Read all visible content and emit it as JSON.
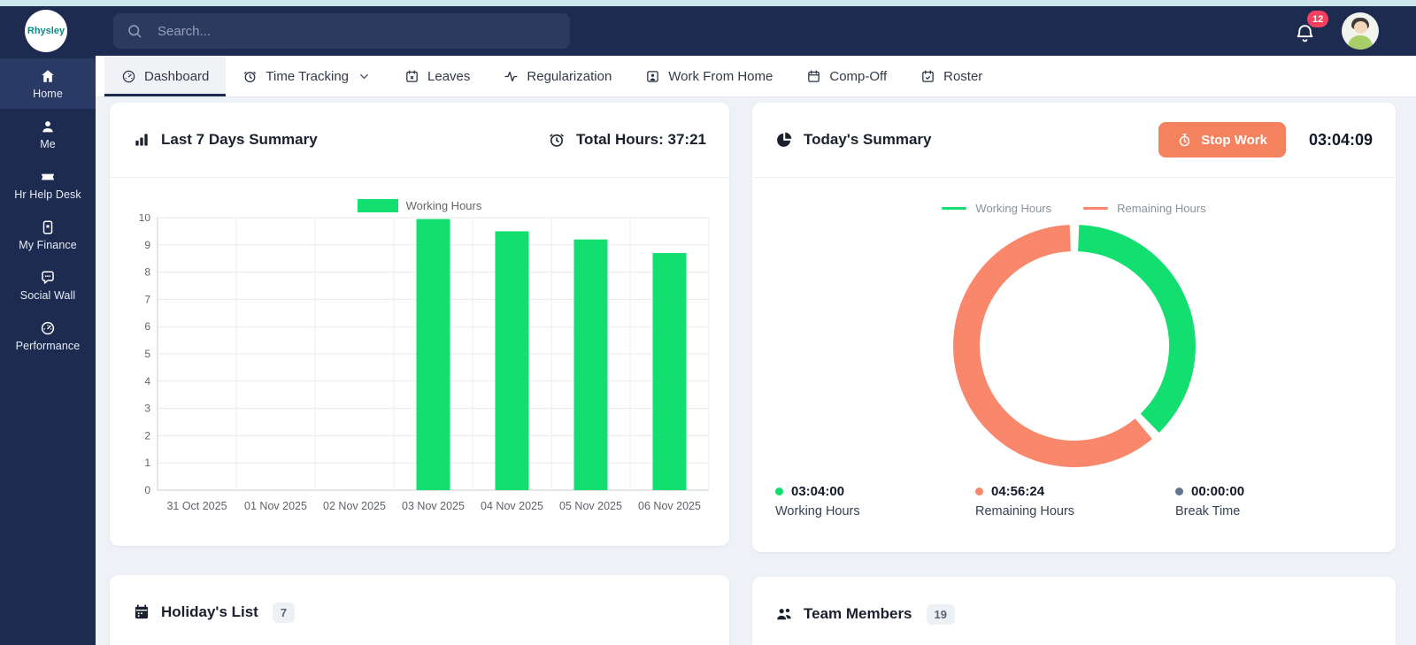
{
  "topbar": {
    "logo_text": "Rhysley",
    "search_placeholder": "Search...",
    "notification_count": "12"
  },
  "sidebar": {
    "items": [
      {
        "label": "Home",
        "icon": "home-icon",
        "active": true
      },
      {
        "label": "Me",
        "icon": "person-icon",
        "active": false
      },
      {
        "label": "Hr Help Desk",
        "icon": "ticket-icon",
        "active": false
      },
      {
        "label": "My Finance",
        "icon": "finance-icon",
        "active": false
      },
      {
        "label": "Social Wall",
        "icon": "chat-bubble-icon",
        "active": false
      },
      {
        "label": "Performance",
        "icon": "gauge-icon",
        "active": false
      }
    ]
  },
  "tabs": {
    "items": [
      {
        "label": "Dashboard",
        "icon": "dashboard-icon",
        "active": true,
        "caret": false
      },
      {
        "label": "Time Tracking",
        "icon": "alarm-clock-icon",
        "active": false,
        "caret": true
      },
      {
        "label": "Leaves",
        "icon": "calendar-x-icon",
        "active": false,
        "caret": false
      },
      {
        "label": "Regularization",
        "icon": "activity-icon",
        "active": false,
        "caret": false
      },
      {
        "label": "Work From Home",
        "icon": "user-square-icon",
        "active": false,
        "caret": false
      },
      {
        "label": "Comp-Off",
        "icon": "calendar-icon",
        "active": false,
        "caret": false
      },
      {
        "label": "Roster",
        "icon": "calendar-check-icon",
        "active": false,
        "caret": false
      }
    ]
  },
  "summary_card": {
    "title": "Last 7 Days Summary",
    "total_hours": "Total Hours: 37:21"
  },
  "today_card": {
    "title": "Today's Summary",
    "stop_work_label": "Stop Work",
    "timer": "03:04:09",
    "stats": [
      {
        "value": "03:04:00",
        "label": "Working Hours",
        "color": "#12DF70"
      },
      {
        "value": "04:56:24",
        "label": "Remaining Hours",
        "color": "#F8876B"
      },
      {
        "value": "00:00:00",
        "label": "Break Time",
        "color": "#64748B"
      }
    ]
  },
  "holidays_card": {
    "title": "Holiday's List",
    "count": "7"
  },
  "team_card": {
    "title": "Team Members",
    "count": "19"
  },
  "chart_data": [
    {
      "type": "bar",
      "title": "Last 7 Days Summary",
      "categories": [
        "31 Oct 2025",
        "01 Nov 2025",
        "02 Nov 2025",
        "03 Nov 2025",
        "04 Nov 2025",
        "05 Nov 2025",
        "06 Nov 2025"
      ],
      "series": [
        {
          "name": "Working Hours",
          "values": [
            0,
            0,
            0,
            9.95,
            9.5,
            9.2,
            8.7
          ],
          "color": "#12DF70"
        }
      ],
      "xlabel": "",
      "ylabel": "",
      "ylim": [
        0,
        10
      ],
      "yticks": [
        0,
        1,
        2,
        3,
        4,
        5,
        6,
        7,
        8,
        9,
        10
      ],
      "grid": true,
      "legend_position": "top"
    },
    {
      "type": "pie",
      "title": "Today's Summary",
      "donut": true,
      "labels": [
        "Working Hours",
        "Remaining Hours"
      ],
      "values_hhmmss": [
        "03:04:00",
        "04:56:24"
      ],
      "values_hours": [
        3.0667,
        4.94
      ],
      "colors": [
        "#12DF70",
        "#F8876B"
      ],
      "legend_position": "top"
    }
  ],
  "colors": {
    "topbar_bg": "#1D2B50",
    "accent_strip": "#CBE7EC",
    "sidebar_active_bg": "#293A64",
    "page_bg": "#EEF1F6",
    "bar_green": "#12DF70",
    "salmon": "#F8876B",
    "stop_button_bg": "#F5825F",
    "notification_badge": "#F43F5E",
    "logo_text_color": "#0C8B85"
  }
}
